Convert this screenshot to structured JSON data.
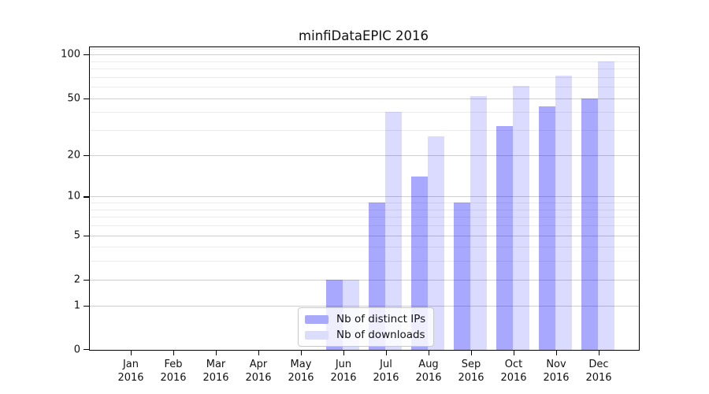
{
  "chart_data": {
    "type": "bar",
    "title": "minfiDataEPIC 2016",
    "xlabel": "",
    "ylabel": "",
    "x_tick_year": "2016",
    "categories": [
      "Jan",
      "Feb",
      "Mar",
      "Apr",
      "May",
      "Jun",
      "Jul",
      "Aug",
      "Sep",
      "Oct",
      "Nov",
      "Dec"
    ],
    "series": [
      {
        "name": "Nb of distinct IPs",
        "values": [
          0,
          0,
          0,
          0,
          0,
          2,
          9,
          14,
          9,
          32,
          44,
          50
        ],
        "color": "#0000ff",
        "alpha": 0.34,
        "rendered_color": "#a9a9fb"
      },
      {
        "name": "Nb of downloads",
        "values": [
          0,
          0,
          0,
          0,
          0,
          2,
          40,
          27,
          52,
          61,
          72,
          90
        ],
        "color": "#0000ff",
        "alpha": 0.14,
        "rendered_color": "#dcdcfb"
      }
    ],
    "y_scale": "log1p",
    "ylim": [
      0,
      112
    ],
    "y_major_ticks": [
      0,
      1,
      2,
      5,
      10,
      20,
      50,
      100
    ],
    "y_minor_gridlines": [
      3,
      4,
      6,
      7,
      8,
      9,
      30,
      40,
      60,
      70,
      80,
      90,
      110
    ],
    "grid": "both",
    "legend_position": "lower center",
    "colors": {
      "major_grid": "#cfcfcf",
      "minor_grid": "#ececec",
      "axis": "#000000",
      "text": "#111111",
      "legend_border": "#c9c9c9"
    }
  }
}
